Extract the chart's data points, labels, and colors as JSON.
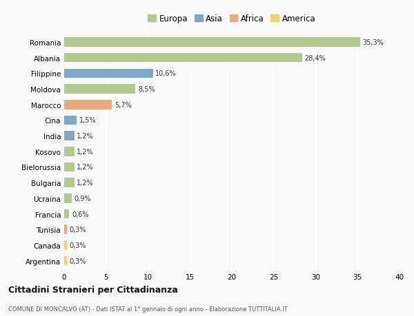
{
  "countries": [
    "Romania",
    "Albania",
    "Filippine",
    "Moldova",
    "Marocco",
    "Cina",
    "India",
    "Kosovo",
    "Bielorussia",
    "Bulgaria",
    "Ucraina",
    "Francia",
    "Tunisia",
    "Canada",
    "Argentina"
  ],
  "values": [
    35.3,
    28.4,
    10.6,
    8.5,
    5.7,
    1.5,
    1.2,
    1.2,
    1.2,
    1.2,
    0.9,
    0.6,
    0.3,
    0.3,
    0.3
  ],
  "labels": [
    "35,3%",
    "28,4%",
    "10,6%",
    "8,5%",
    "5,7%",
    "1,5%",
    "1,2%",
    "1,2%",
    "1,2%",
    "1,2%",
    "0,9%",
    "0,6%",
    "0,3%",
    "0,3%",
    "0,3%"
  ],
  "continents": [
    "Europa",
    "Europa",
    "Asia",
    "Europa",
    "Africa",
    "Asia",
    "Asia",
    "Europa",
    "Europa",
    "Europa",
    "Europa",
    "Europa",
    "Africa",
    "America",
    "America"
  ],
  "continent_colors": {
    "Europa": "#b5c98e",
    "Asia": "#7ea8c9",
    "Africa": "#e8a97e",
    "America": "#f0d070"
  },
  "legend_order": [
    "Europa",
    "Asia",
    "Africa",
    "America"
  ],
  "xlim": [
    0,
    40
  ],
  "xticks": [
    0,
    5,
    10,
    15,
    20,
    25,
    30,
    35,
    40
  ],
  "title": "Cittadini Stranieri per Cittadinanza",
  "subtitle": "COMUNE DI MONCALVO (AT) - Dati ISTAT al 1° gennaio di ogni anno - Elaborazione TUTTITALIA.IT",
  "background_color": "#f9f9f9",
  "grid_color": "#ffffff",
  "bar_height": 0.6
}
